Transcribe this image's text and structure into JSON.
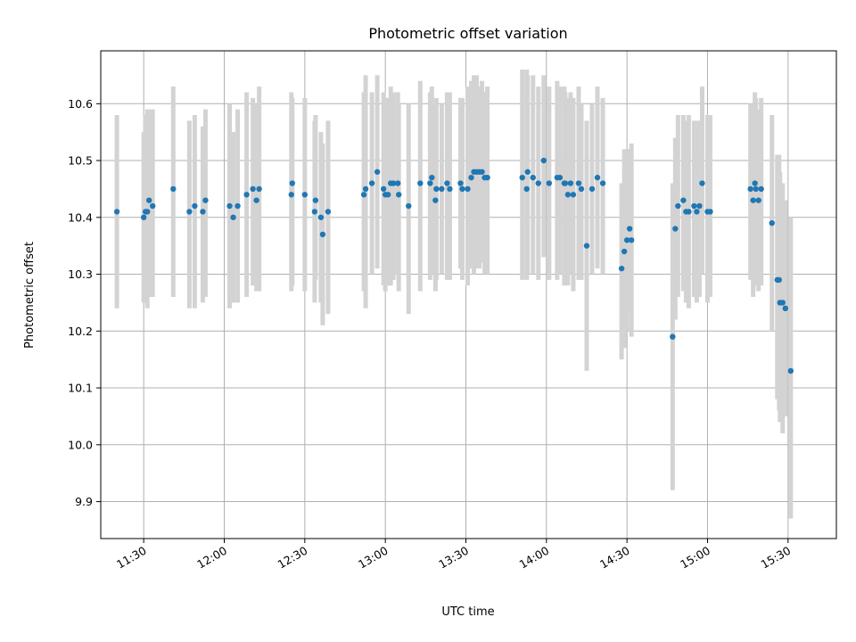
{
  "chart_data": {
    "type": "scatter",
    "title": "Photometric offset variation",
    "xlabel": "UTC time",
    "ylabel": "Photometric offset",
    "xlim": [
      "11:14",
      "15:48"
    ],
    "ylim": [
      9.835,
      10.693
    ],
    "grid": true,
    "x_ticks": [
      "11:30",
      "12:00",
      "12:30",
      "13:00",
      "13:30",
      "14:00",
      "14:30",
      "15:00",
      "15:30"
    ],
    "y_ticks": [
      "9.9",
      "10.0",
      "10.1",
      "10.2",
      "10.3",
      "10.4",
      "10.5",
      "10.6"
    ],
    "colors": {
      "marker": "#1f77b4",
      "errorbar": "#d3d3d3",
      "grid": "#b0b0b0"
    },
    "points": [
      {
        "x": "11:20",
        "y": 10.41,
        "ylo": 10.24,
        "yhi": 10.58
      },
      {
        "x": "11:30",
        "y": 10.4,
        "ylo": 10.25,
        "yhi": 10.55
      },
      {
        "x": "11:30:40",
        "y": 10.41,
        "ylo": 10.25,
        "yhi": 10.58
      },
      {
        "x": "11:31:20",
        "y": 10.41,
        "ylo": 10.24,
        "yhi": 10.59
      },
      {
        "x": "11:32",
        "y": 10.43,
        "ylo": 10.26,
        "yhi": 10.59
      },
      {
        "x": "11:33:20",
        "y": 10.42,
        "ylo": 10.26,
        "yhi": 10.59
      },
      {
        "x": "11:41",
        "y": 10.45,
        "ylo": 10.26,
        "yhi": 10.63
      },
      {
        "x": "11:47",
        "y": 10.41,
        "ylo": 10.24,
        "yhi": 10.57
      },
      {
        "x": "11:49",
        "y": 10.42,
        "ylo": 10.24,
        "yhi": 10.58
      },
      {
        "x": "11:52",
        "y": 10.41,
        "ylo": 10.25,
        "yhi": 10.56
      },
      {
        "x": "11:53",
        "y": 10.43,
        "ylo": 10.26,
        "yhi": 10.59
      },
      {
        "x": "12:02",
        "y": 10.42,
        "ylo": 10.24,
        "yhi": 10.6
      },
      {
        "x": "12:03:20",
        "y": 10.4,
        "ylo": 10.25,
        "yhi": 10.55
      },
      {
        "x": "12:05",
        "y": 10.42,
        "ylo": 10.25,
        "yhi": 10.59
      },
      {
        "x": "12:08:20",
        "y": 10.44,
        "ylo": 10.26,
        "yhi": 10.62
      },
      {
        "x": "12:10:40",
        "y": 10.45,
        "ylo": 10.28,
        "yhi": 10.61
      },
      {
        "x": "12:12",
        "y": 10.43,
        "ylo": 10.27,
        "yhi": 10.6
      },
      {
        "x": "12:13",
        "y": 10.45,
        "ylo": 10.27,
        "yhi": 10.63
      },
      {
        "x": "12:25",
        "y": 10.44,
        "ylo": 10.27,
        "yhi": 10.62
      },
      {
        "x": "12:25:20",
        "y": 10.46,
        "ylo": 10.28,
        "yhi": 10.61
      },
      {
        "x": "12:30",
        "y": 10.44,
        "ylo": 10.27,
        "yhi": 10.61
      },
      {
        "x": "12:33:40",
        "y": 10.41,
        "ylo": 10.25,
        "yhi": 10.57
      },
      {
        "x": "12:34",
        "y": 10.43,
        "ylo": 10.29,
        "yhi": 10.58
      },
      {
        "x": "12:36",
        "y": 10.4,
        "ylo": 10.25,
        "yhi": 10.55
      },
      {
        "x": "12:36:40",
        "y": 10.37,
        "ylo": 10.21,
        "yhi": 10.53
      },
      {
        "x": "12:38:40",
        "y": 10.41,
        "ylo": 10.23,
        "yhi": 10.57
      },
      {
        "x": "12:52",
        "y": 10.44,
        "ylo": 10.27,
        "yhi": 10.62
      },
      {
        "x": "12:52:40",
        "y": 10.45,
        "ylo": 10.24,
        "yhi": 10.65
      },
      {
        "x": "12:55",
        "y": 10.46,
        "ylo": 10.3,
        "yhi": 10.62
      },
      {
        "x": "12:57",
        "y": 10.48,
        "ylo": 10.31,
        "yhi": 10.65
      },
      {
        "x": "12:59:20",
        "y": 10.45,
        "ylo": 10.28,
        "yhi": 10.62
      },
      {
        "x": "13:00",
        "y": 10.44,
        "ylo": 10.27,
        "yhi": 10.61
      },
      {
        "x": "13:01",
        "y": 10.44,
        "ylo": 10.28,
        "yhi": 10.61
      },
      {
        "x": "13:02",
        "y": 10.46,
        "ylo": 10.28,
        "yhi": 10.63
      },
      {
        "x": "13:03",
        "y": 10.46,
        "ylo": 10.29,
        "yhi": 10.62
      },
      {
        "x": "13:04:40",
        "y": 10.46,
        "ylo": 10.3,
        "yhi": 10.62
      },
      {
        "x": "13:05",
        "y": 10.44,
        "ylo": 10.27,
        "yhi": 10.6
      },
      {
        "x": "13:08:40",
        "y": 10.42,
        "ylo": 10.23,
        "yhi": 10.6
      },
      {
        "x": "13:13",
        "y": 10.46,
        "ylo": 10.27,
        "yhi": 10.64
      },
      {
        "x": "13:16:40",
        "y": 10.46,
        "ylo": 10.29,
        "yhi": 10.62
      },
      {
        "x": "13:17:20",
        "y": 10.47,
        "ylo": 10.3,
        "yhi": 10.63
      },
      {
        "x": "13:18:40",
        "y": 10.43,
        "ylo": 10.27,
        "yhi": 10.6
      },
      {
        "x": "13:19",
        "y": 10.45,
        "ylo": 10.29,
        "yhi": 10.61
      },
      {
        "x": "13:21",
        "y": 10.45,
        "ylo": 10.3,
        "yhi": 10.6
      },
      {
        "x": "13:23",
        "y": 10.46,
        "ylo": 10.29,
        "yhi": 10.62
      },
      {
        "x": "13:24",
        "y": 10.45,
        "ylo": 10.29,
        "yhi": 10.62
      },
      {
        "x": "13:28",
        "y": 10.46,
        "ylo": 10.31,
        "yhi": 10.61
      },
      {
        "x": "13:28:40",
        "y": 10.45,
        "ylo": 10.29,
        "yhi": 10.61
      },
      {
        "x": "13:30:40",
        "y": 10.45,
        "ylo": 10.28,
        "yhi": 10.63
      },
      {
        "x": "13:32",
        "y": 10.47,
        "ylo": 10.31,
        "yhi": 10.64
      },
      {
        "x": "13:33",
        "y": 10.48,
        "ylo": 10.3,
        "yhi": 10.65
      },
      {
        "x": "13:34",
        "y": 10.48,
        "ylo": 10.31,
        "yhi": 10.65
      },
      {
        "x": "13:35",
        "y": 10.48,
        "ylo": 10.31,
        "yhi": 10.63
      },
      {
        "x": "13:36",
        "y": 10.48,
        "ylo": 10.32,
        "yhi": 10.64
      },
      {
        "x": "13:37",
        "y": 10.47,
        "ylo": 10.3,
        "yhi": 10.62
      },
      {
        "x": "13:38",
        "y": 10.47,
        "ylo": 10.3,
        "yhi": 10.63
      },
      {
        "x": "13:51",
        "y": 10.47,
        "ylo": 10.29,
        "yhi": 10.66
      },
      {
        "x": "13:52:40",
        "y": 10.45,
        "ylo": 10.29,
        "yhi": 10.66
      },
      {
        "x": "13:53",
        "y": 10.48,
        "ylo": 10.3,
        "yhi": 10.65
      },
      {
        "x": "13:55",
        "y": 10.47,
        "ylo": 10.3,
        "yhi": 10.65
      },
      {
        "x": "13:57",
        "y": 10.46,
        "ylo": 10.29,
        "yhi": 10.63
      },
      {
        "x": "13:59",
        "y": 10.5,
        "ylo": 10.33,
        "yhi": 10.65
      },
      {
        "x": "14:01",
        "y": 10.46,
        "ylo": 10.29,
        "yhi": 10.63
      },
      {
        "x": "14:04",
        "y": 10.47,
        "ylo": 10.29,
        "yhi": 10.64
      },
      {
        "x": "14:05",
        "y": 10.47,
        "ylo": 10.3,
        "yhi": 10.63
      },
      {
        "x": "14:06:40",
        "y": 10.46,
        "ylo": 10.28,
        "yhi": 10.63
      },
      {
        "x": "14:07",
        "y": 10.46,
        "ylo": 10.29,
        "yhi": 10.62
      },
      {
        "x": "14:08",
        "y": 10.44,
        "ylo": 10.28,
        "yhi": 10.61
      },
      {
        "x": "14:09",
        "y": 10.46,
        "ylo": 10.3,
        "yhi": 10.62
      },
      {
        "x": "14:10",
        "y": 10.44,
        "ylo": 10.27,
        "yhi": 10.61
      },
      {
        "x": "14:12",
        "y": 10.46,
        "ylo": 10.29,
        "yhi": 10.63
      },
      {
        "x": "14:13",
        "y": 10.45,
        "ylo": 10.29,
        "yhi": 10.6
      },
      {
        "x": "14:15",
        "y": 10.35,
        "ylo": 10.13,
        "yhi": 10.57
      },
      {
        "x": "14:17",
        "y": 10.45,
        "ylo": 10.3,
        "yhi": 10.6
      },
      {
        "x": "14:19",
        "y": 10.47,
        "ylo": 10.31,
        "yhi": 10.63
      },
      {
        "x": "14:21",
        "y": 10.46,
        "ylo": 10.3,
        "yhi": 10.61
      },
      {
        "x": "14:28",
        "y": 10.31,
        "ylo": 10.15,
        "yhi": 10.46
      },
      {
        "x": "14:29",
        "y": 10.34,
        "ylo": 10.17,
        "yhi": 10.52
      },
      {
        "x": "14:30",
        "y": 10.36,
        "ylo": 10.2,
        "yhi": 10.52
      },
      {
        "x": "14:31",
        "y": 10.38,
        "ylo": 10.24,
        "yhi": 10.52
      },
      {
        "x": "14:31:40",
        "y": 10.36,
        "ylo": 10.19,
        "yhi": 10.53
      },
      {
        "x": "14:47",
        "y": 10.19,
        "ylo": 9.92,
        "yhi": 10.46
      },
      {
        "x": "14:48",
        "y": 10.38,
        "ylo": 10.22,
        "yhi": 10.54
      },
      {
        "x": "14:49",
        "y": 10.42,
        "ylo": 10.26,
        "yhi": 10.58
      },
      {
        "x": "14:51",
        "y": 10.43,
        "ylo": 10.27,
        "yhi": 10.58
      },
      {
        "x": "14:52",
        "y": 10.41,
        "ylo": 10.25,
        "yhi": 10.57
      },
      {
        "x": "14:53",
        "y": 10.41,
        "ylo": 10.24,
        "yhi": 10.58
      },
      {
        "x": "14:55",
        "y": 10.42,
        "ylo": 10.26,
        "yhi": 10.57
      },
      {
        "x": "14:56",
        "y": 10.41,
        "ylo": 10.25,
        "yhi": 10.57
      },
      {
        "x": "14:57",
        "y": 10.42,
        "ylo": 10.26,
        "yhi": 10.57
      },
      {
        "x": "14:58",
        "y": 10.46,
        "ylo": 10.3,
        "yhi": 10.63
      },
      {
        "x": "15:00",
        "y": 10.41,
        "ylo": 10.25,
        "yhi": 10.58
      },
      {
        "x": "15:01",
        "y": 10.41,
        "ylo": 10.26,
        "yhi": 10.58
      },
      {
        "x": "15:16",
        "y": 10.45,
        "ylo": 10.29,
        "yhi": 10.6
      },
      {
        "x": "15:17",
        "y": 10.43,
        "ylo": 10.26,
        "yhi": 10.6
      },
      {
        "x": "15:17:40",
        "y": 10.46,
        "ylo": 10.3,
        "yhi": 10.62
      },
      {
        "x": "15:18",
        "y": 10.45,
        "ylo": 10.28,
        "yhi": 10.61
      },
      {
        "x": "15:19",
        "y": 10.43,
        "ylo": 10.27,
        "yhi": 10.59
      },
      {
        "x": "15:20",
        "y": 10.45,
        "ylo": 10.28,
        "yhi": 10.61
      },
      {
        "x": "15:24",
        "y": 10.39,
        "ylo": 10.2,
        "yhi": 10.58
      },
      {
        "x": "15:26",
        "y": 10.29,
        "ylo": 10.08,
        "yhi": 10.51
      },
      {
        "x": "15:26:40",
        "y": 10.29,
        "ylo": 10.06,
        "yhi": 10.51
      },
      {
        "x": "15:27",
        "y": 10.25,
        "ylo": 10.04,
        "yhi": 10.48
      },
      {
        "x": "15:28",
        "y": 10.25,
        "ylo": 10.02,
        "yhi": 10.46
      },
      {
        "x": "15:29",
        "y": 10.24,
        "ylo": 10.05,
        "yhi": 10.43
      },
      {
        "x": "15:31",
        "y": 10.13,
        "ylo": 9.87,
        "yhi": 10.4
      }
    ]
  }
}
